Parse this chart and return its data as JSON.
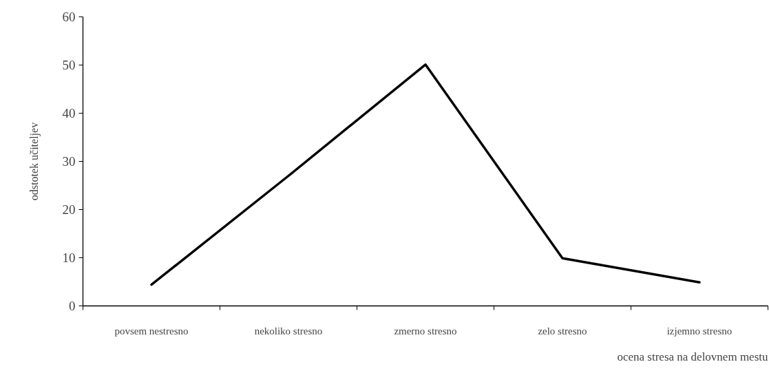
{
  "chart_data": {
    "type": "line",
    "xlabel": "ocena stresa na delovnem mestu",
    "ylabel": "odstotek učiteljev",
    "categories": [
      "povsem nestresno",
      "nekoliko stresno",
      "zmerno stresno",
      "zelo stresno",
      "izjemno stresno"
    ],
    "series": [
      {
        "color": "#000000",
        "values": [
          4.4,
          27,
          50.1,
          9.9,
          4.9
        ]
      }
    ],
    "ylim": [
      0,
      60
    ],
    "yticks": [
      0,
      10,
      20,
      30,
      40,
      50,
      60
    ],
    "grid": false,
    "marker": "none",
    "line_style": "solid"
  }
}
